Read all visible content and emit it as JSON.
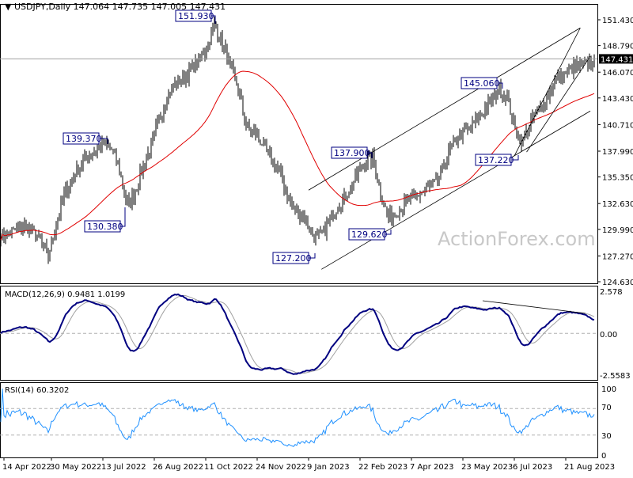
{
  "chart_data": {
    "type": "line",
    "title": "USDJPY,Daily",
    "ohlc_readout": "147.064 147.735 147.005 147.431",
    "watermark": "ActionForex.com",
    "last_price": "147.431",
    "price_axis": {
      "ticks": [
        "151.430",
        "148.790",
        "146.070",
        "143.430",
        "140.710",
        "137.990",
        "135.350",
        "132.630",
        "129.990",
        "127.270",
        "124.630"
      ],
      "range": [
        124.63,
        151.43
      ]
    },
    "x_ticks": [
      "14 Apr 2022",
      "30 May 2022",
      "13 Jul 2022",
      "26 Aug 2022",
      "11 Oct 2022",
      "24 Nov 2022",
      "9 Jan 2023",
      "22 Feb 2023",
      "7 Apr 2023",
      "23 May 2023",
      "6 Jul 2023",
      "21 Aug 2023"
    ],
    "weekly_close": [
      129.5,
      129.5,
      130,
      130.3,
      129.8,
      128.8,
      127.3,
      130.5,
      133.5,
      135.2,
      136.5,
      137.5,
      138.1,
      138.8,
      138.2,
      136,
      132.4,
      134,
      136.5,
      138.5,
      141.3,
      143.5,
      144.8,
      145.4,
      146.2,
      147.3,
      148.6,
      151,
      149,
      146.5,
      144.5,
      140.5,
      140,
      138.8,
      137.3,
      136.2,
      134,
      132,
      131.6,
      130,
      129,
      130,
      131.6,
      132.8,
      134,
      135.5,
      136.9,
      137.3,
      133.6,
      131.2,
      131.8,
      132.5,
      133.2,
      133.6,
      134.2,
      134.8,
      136.5,
      138.5,
      139.7,
      140.2,
      141,
      142.1,
      143.2,
      144.3,
      143.5,
      140,
      139,
      141,
      142.1,
      143.5,
      145,
      145.8,
      146.3,
      146.8,
      146.9,
      147.431
    ],
    "annotations": [
      "151.930",
      "139.370",
      "130.380",
      "127.200",
      "137.900",
      "129.620",
      "145.060",
      "137.220"
    ],
    "trendlines": [
      {
        "from": [
          "9 Jan 2023",
          134.0
        ],
        "to": [
          "3 Sep 2023",
          150.6
        ]
      },
      {
        "from": [
          "20 Jan 2023",
          125.9
        ],
        "to": [
          "12 Sep 2023",
          142.1
        ]
      },
      {
        "from": [
          "6 Jul 2023",
          137.5
        ],
        "to": [
          "3 Sep 2023",
          150.6
        ]
      },
      {
        "from": [
          "17 Jul 2023",
          137.9
        ],
        "to": [
          "12 Sep 2023",
          147.7
        ]
      }
    ],
    "moving_average": {
      "color": "#e00000"
    },
    "macd": {
      "label": "MACD(12,26,9) 0.9481 1.0199",
      "ticks": [
        "2.578",
        "0.00",
        "-2.5583"
      ],
      "range": [
        -2.5583,
        2.578
      ],
      "main_color": "#000080",
      "signal_color": "#a0a0a0"
    },
    "rsi": {
      "label": "RSI(14) 60.3202",
      "ticks": [
        "100",
        "70",
        "30",
        "0"
      ],
      "levels": [
        70,
        30
      ],
      "range": [
        0,
        100
      ],
      "color": "#1e90ff"
    }
  }
}
